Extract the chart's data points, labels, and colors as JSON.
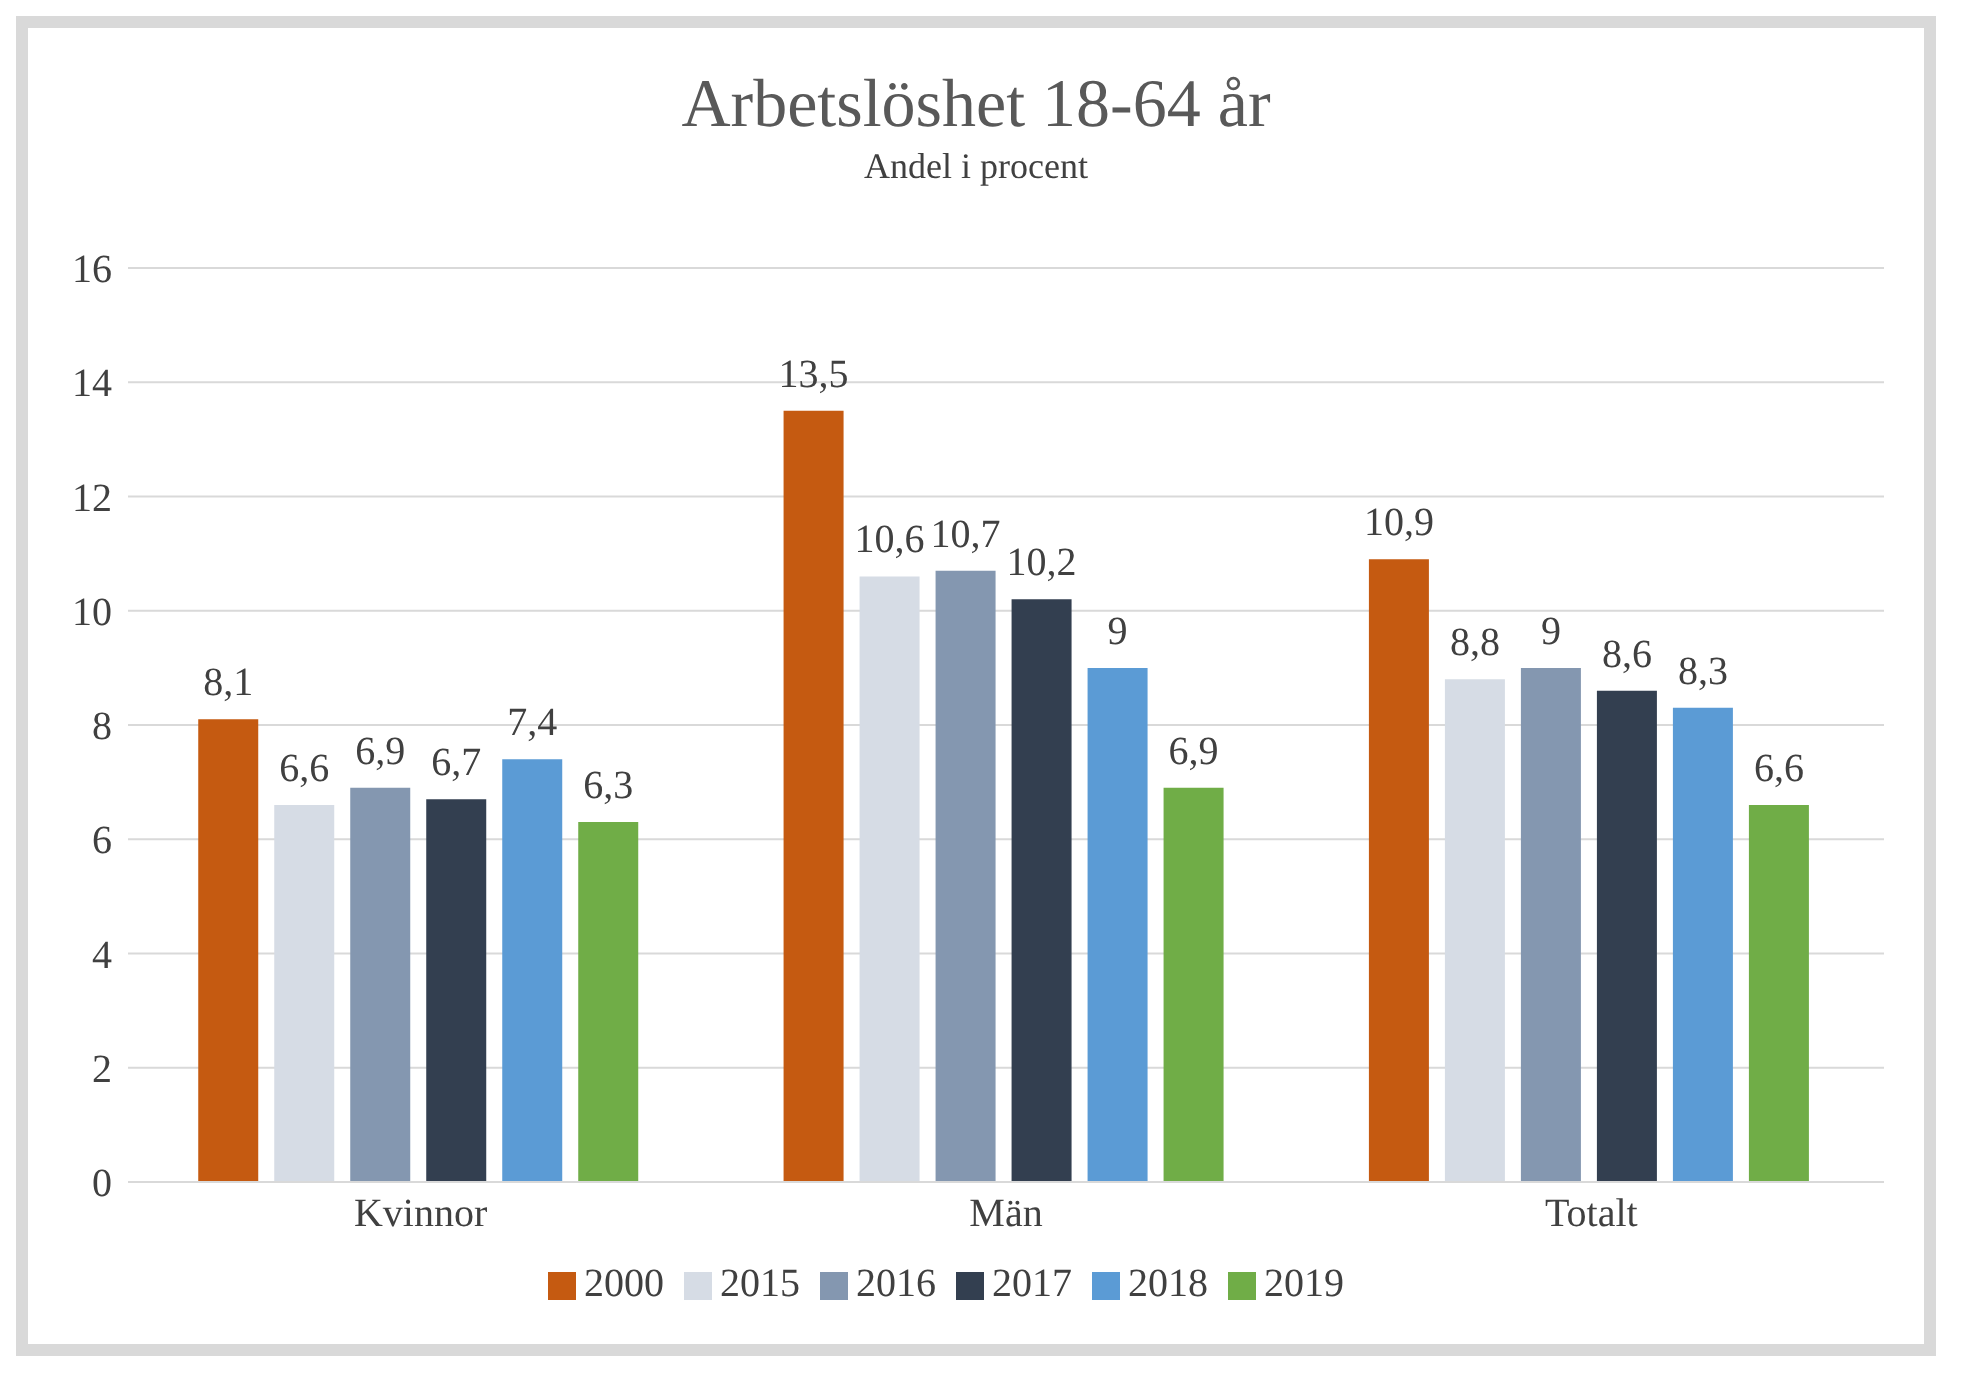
{
  "chart_data": {
    "type": "bar",
    "title": "Arbetslöshet 18-64 år",
    "subtitle": "Andel i procent",
    "categories": [
      "Kvinnor",
      "Män",
      "Totalt"
    ],
    "series": [
      {
        "name": "2000",
        "color": "#c55a11",
        "values": [
          8.1,
          13.5,
          10.9
        ],
        "value_labels": [
          "8,1",
          "13,5",
          "10,9"
        ]
      },
      {
        "name": "2015",
        "color": "#d6dce5",
        "values": [
          6.6,
          10.6,
          8.8
        ],
        "value_labels": [
          "6,6",
          "10,6",
          "8,8"
        ]
      },
      {
        "name": "2016",
        "color": "#8497b0",
        "values": [
          6.9,
          10.7,
          9
        ],
        "value_labels": [
          "6,9",
          "10,7",
          "9"
        ]
      },
      {
        "name": "2017",
        "color": "#333f50",
        "values": [
          6.7,
          10.2,
          8.6
        ],
        "value_labels": [
          "6,7",
          "10,2",
          "8,6"
        ]
      },
      {
        "name": "2018",
        "color": "#5b9bd5",
        "values": [
          7.4,
          9,
          8.3
        ],
        "value_labels": [
          "7,4",
          "9",
          "8,3"
        ]
      },
      {
        "name": "2019",
        "color": "#70ad47",
        "values": [
          6.3,
          6.9,
          6.6
        ],
        "value_labels": [
          "6,3",
          "6,9",
          "6,6"
        ]
      }
    ],
    "ylim": [
      0,
      16
    ],
    "yticks": [
      0,
      2,
      4,
      6,
      8,
      10,
      12,
      14,
      16
    ],
    "grid": "y",
    "legend": "bottom"
  }
}
